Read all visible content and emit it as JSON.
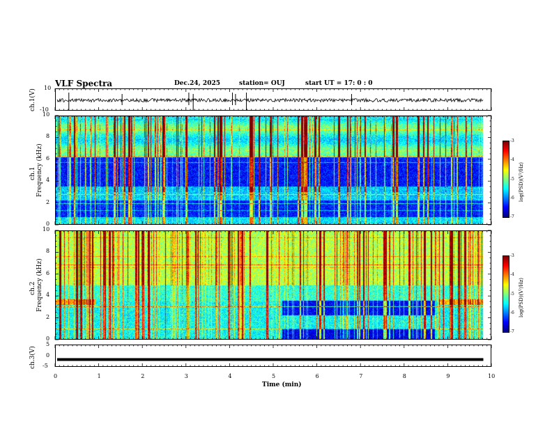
{
  "header": {
    "title": "VLF Spectra",
    "date": "Dec.24, 2025",
    "station": "station= OUJ",
    "start": "start  UT =   17: 0  : 0"
  },
  "chart_data": [
    {
      "type": "line",
      "name": "ch.1 waveform",
      "ylabel": "ch.1(V)",
      "ylim": [
        -10,
        10
      ],
      "yticks": [
        "10",
        "-10"
      ],
      "x_range_min": [
        0,
        9.8
      ],
      "baseline": 0,
      "spikes_min": [
        0.3,
        1.52,
        3.05,
        3.15,
        4.05,
        4.12,
        4.37,
        6.78
      ]
    },
    {
      "type": "heatmap",
      "name": "ch.1 spectrogram",
      "ylabel_line1": "ch.1",
      "ylabel_line2": "Frequency (kHz)",
      "ylim": [
        0,
        10
      ],
      "yticks": [
        "0",
        "2",
        "4",
        "6",
        "8",
        "10"
      ],
      "colorbar": {
        "label": "log(PSD)(V²/Hz)",
        "range": [
          -7,
          -3
        ],
        "ticks": [
          "-3",
          "-4",
          "-5",
          "-6",
          "-7"
        ]
      }
    },
    {
      "type": "heatmap",
      "name": "ch.2 spectrogram",
      "ylabel_line1": "ch.2",
      "ylabel_line2": "Frequency (kHz)",
      "ylim": [
        0,
        10
      ],
      "yticks": [
        "0",
        "2",
        "4",
        "6",
        "8",
        "10"
      ],
      "colorbar": {
        "label": "log(PSD)(V²/Hz)",
        "range": [
          -7,
          -3
        ],
        "ticks": [
          "-3",
          "-4",
          "-5",
          "-6",
          "-7"
        ]
      },
      "band_shift_min": [
        5.2,
        8.75
      ]
    },
    {
      "type": "line",
      "name": "ch.3 level",
      "ylabel": "ch.3(V)",
      "ylim": [
        -5,
        5
      ],
      "yticks": [
        "5",
        "0",
        "-5"
      ],
      "constant_value": -1.4,
      "x_range_min": [
        0,
        9.8
      ]
    }
  ],
  "xaxis": {
    "label": "Time  (min)",
    "range": [
      0,
      10
    ],
    "ticks": [
      "0",
      "1",
      "2",
      "3",
      "4",
      "5",
      "6",
      "7",
      "8",
      "9",
      "10"
    ]
  }
}
